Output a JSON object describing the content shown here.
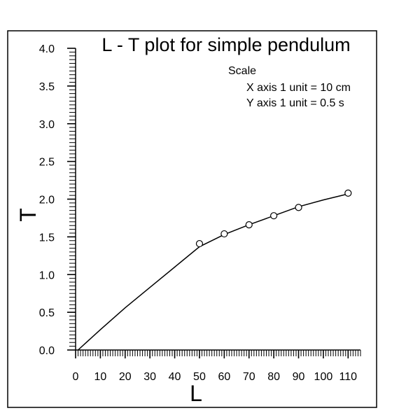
{
  "chart_data": {
    "type": "line",
    "title": "L - T plot for simple pendulum",
    "xlabel": "L",
    "ylabel": "T",
    "xlim": [
      0,
      115
    ],
    "ylim": [
      0,
      4.0
    ],
    "x_ticks": [
      0,
      10,
      20,
      30,
      40,
      50,
      60,
      70,
      80,
      90,
      100,
      110
    ],
    "x_tick_labels": [
      "0",
      "10",
      "20",
      "30",
      "40",
      "50",
      "60",
      "70",
      "80",
      "90",
      "100",
      "110"
    ],
    "y_ticks": [
      0,
      0.5,
      1.0,
      1.5,
      2.0,
      2.5,
      3.0,
      3.5,
      4.0
    ],
    "y_tick_labels": [
      "0.0",
      "0.5",
      "1.0",
      "1.5",
      "2.0",
      "2.5",
      "3.0",
      "3.5",
      "4.0"
    ],
    "grid": false,
    "annotation": {
      "heading": "Scale",
      "lines": [
        "X axis 1 unit = 10 cm",
        "Y axis 1 unit = 0.5 s"
      ]
    },
    "series": [
      {
        "points": [
          {
            "x": 50,
            "y": 1.41
          },
          {
            "x": 60,
            "y": 1.54
          },
          {
            "x": 70,
            "y": 1.66
          },
          {
            "x": 80,
            "y": 1.78
          },
          {
            "x": 90,
            "y": 1.89
          },
          {
            "x": 110,
            "y": 2.08
          }
        ],
        "curve": [
          {
            "x": 1,
            "y": 0.0
          },
          {
            "x": 10,
            "y": 0.27
          },
          {
            "x": 20,
            "y": 0.56
          },
          {
            "x": 30,
            "y": 0.83
          },
          {
            "x": 40,
            "y": 1.1
          },
          {
            "x": 50,
            "y": 1.37
          },
          {
            "x": 60,
            "y": 1.53
          },
          {
            "x": 70,
            "y": 1.66
          },
          {
            "x": 80,
            "y": 1.78
          },
          {
            "x": 90,
            "y": 1.9
          },
          {
            "x": 100,
            "y": 1.99
          },
          {
            "x": 110,
            "y": 2.07
          }
        ]
      }
    ]
  }
}
